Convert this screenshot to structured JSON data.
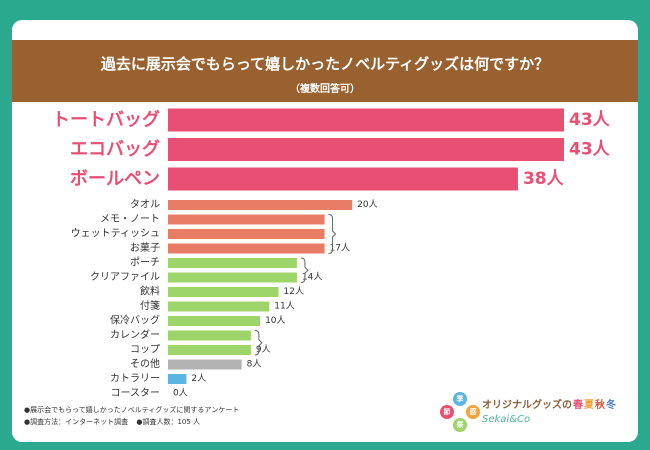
{
  "chart_data": {
    "type": "bar",
    "orientation": "horizontal",
    "title": "過去に展示会でもらって嬉しかったノベルティグッズは何ですか？",
    "subtitle": "（複数回答可）",
    "unit": "人",
    "categories": [
      "トートバッグ",
      "エコバッグ",
      "ボールペン",
      "タオル",
      "メモ・ノート",
      "ウェットティッシュ",
      "お菓子",
      "ポーチ",
      "クリアファイル",
      "飲料",
      "付箋",
      "保冷バッグ",
      "カレンダー",
      "コップ",
      "その他",
      "カトラリー",
      "コースター"
    ],
    "values": [
      43,
      43,
      38,
      20,
      17,
      17,
      17,
      14,
      14,
      12,
      11,
      10,
      9,
      9,
      8,
      2,
      0
    ],
    "value_labels": [
      "43人",
      "43人",
      "38人",
      "20人",
      "",
      "",
      "17人",
      "",
      "14人",
      "12人",
      "11人",
      "10人",
      "",
      "9人",
      "8人",
      "2人",
      "0人"
    ],
    "bracket_groups": [
      {
        "start": 4,
        "end": 6,
        "label": "17人"
      },
      {
        "start": 7,
        "end": 8,
        "label": "14人"
      },
      {
        "start": 12,
        "end": 13,
        "label": "9人"
      }
    ],
    "xlim": [
      0,
      43
    ],
    "grid": false,
    "legend": "none",
    "colors": {
      "top": "#e94f73",
      "orange": "#e87c64",
      "green": "#9ed56b",
      "gray": "#b3b3b3",
      "blue": "#5bb5e2"
    },
    "category_colors": [
      "top",
      "top",
      "top",
      "orange",
      "orange",
      "orange",
      "orange",
      "green",
      "green",
      "green",
      "green",
      "green",
      "green",
      "green",
      "gray",
      "blue",
      "blue"
    ]
  },
  "notes": {
    "line1": "●展示会でもらって嬉しかったノベルティグッズに関するアンケート",
    "line2a": "●調査方法：インターネット調査",
    "line2b": "●調査人数：105 人"
  },
  "logo": {
    "text_main": "オリジナルグッズの",
    "seasons": [
      "春",
      "夏",
      "秋",
      "冬"
    ],
    "season_colors": [
      "#e94f73",
      "#f2a33a",
      "#d9563a",
      "#4a7fc1"
    ],
    "text_sub": "Sekai&Co",
    "badge_chars": [
      "季",
      "節",
      "感",
      "祭"
    ],
    "badge_colors": [
      "#5bb5e2",
      "#e94f73",
      "#f2a33a",
      "#9ed56b"
    ]
  }
}
